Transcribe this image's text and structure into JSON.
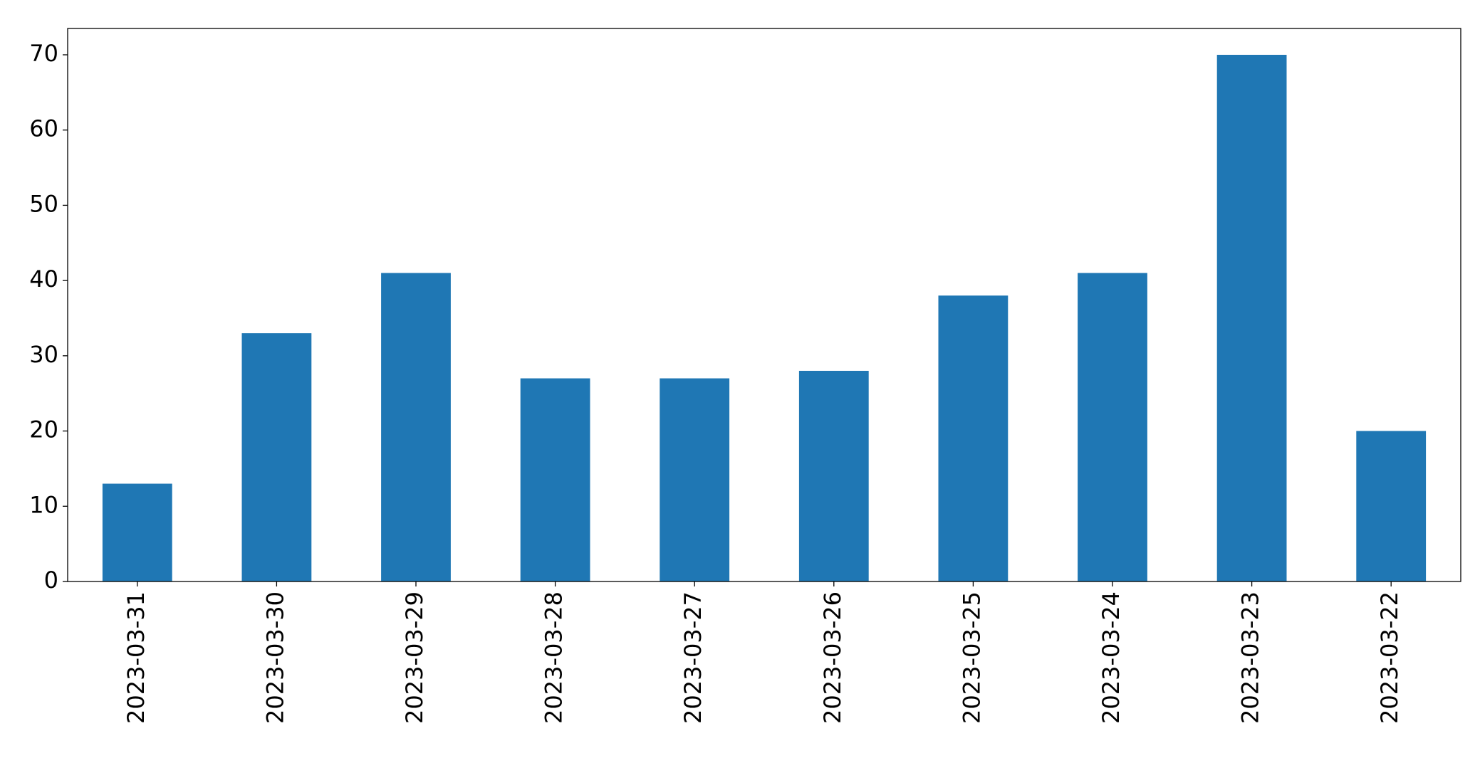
{
  "chart_data": {
    "type": "bar",
    "categories": [
      "2023-03-31",
      "2023-03-30",
      "2023-03-29",
      "2023-03-28",
      "2023-03-27",
      "2023-03-26",
      "2023-03-25",
      "2023-03-24",
      "2023-03-23",
      "2023-03-22"
    ],
    "values": [
      13,
      33,
      41,
      27,
      27,
      28,
      38,
      41,
      70,
      20
    ],
    "color": "#1f77b4",
    "ylim": [
      0,
      73.5
    ],
    "yticks": [
      0,
      10,
      20,
      30,
      40,
      50,
      60,
      70
    ],
    "grid": false
  }
}
